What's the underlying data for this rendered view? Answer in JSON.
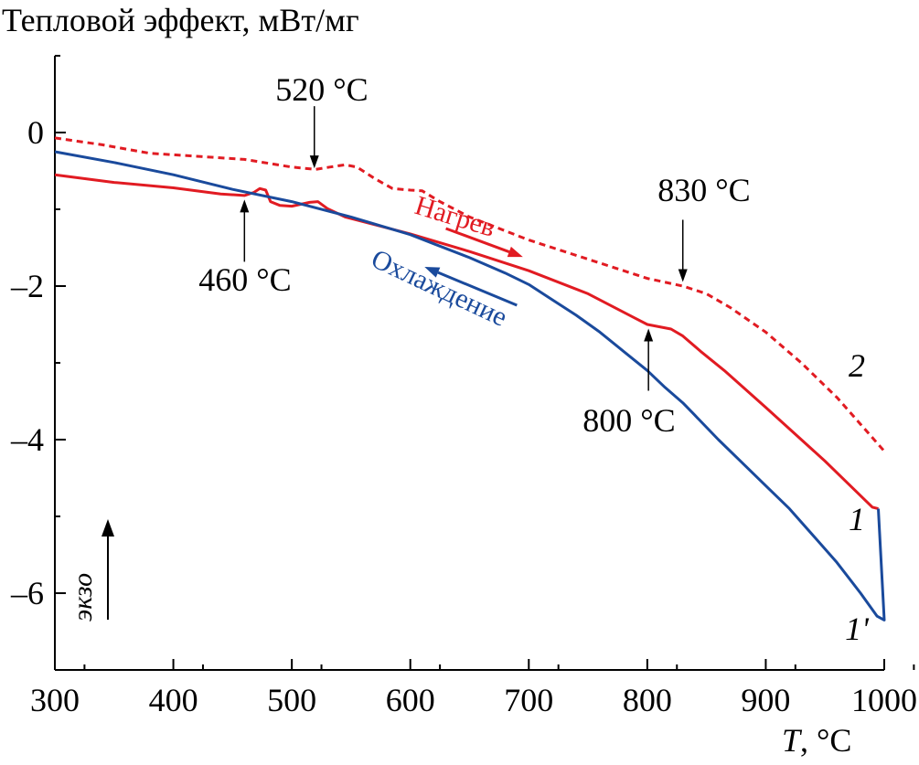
{
  "chart_data": {
    "type": "line",
    "ylabel": "Тепловой эффект, мВт/мг",
    "xlabel_var": "T",
    "xlabel_unit": ", °C",
    "xlim": [
      300,
      1000
    ],
    "ylim": [
      -7,
      1
    ],
    "xticks": [
      300,
      400,
      500,
      600,
      700,
      800,
      900,
      1000
    ],
    "yticks": [
      0,
      -2,
      -4,
      -6
    ],
    "ytick_labels": [
      "0",
      "–2",
      "–4",
      "–6"
    ],
    "grid": false,
    "exo_label": "экзо",
    "series": [
      {
        "name": "1",
        "label": "1",
        "color": "#e11b22",
        "dash": "solid",
        "points": [
          [
            300,
            -0.55
          ],
          [
            350,
            -0.65
          ],
          [
            400,
            -0.72
          ],
          [
            440,
            -0.8
          ],
          [
            460,
            -0.82
          ],
          [
            468,
            -0.78
          ],
          [
            473,
            -0.73
          ],
          [
            478,
            -0.75
          ],
          [
            482,
            -0.9
          ],
          [
            490,
            -0.95
          ],
          [
            500,
            -0.96
          ],
          [
            515,
            -0.91
          ],
          [
            522,
            -0.9
          ],
          [
            530,
            -0.99
          ],
          [
            545,
            -1.1
          ],
          [
            570,
            -1.2
          ],
          [
            600,
            -1.32
          ],
          [
            650,
            -1.55
          ],
          [
            700,
            -1.8
          ],
          [
            750,
            -2.1
          ],
          [
            790,
            -2.42
          ],
          [
            800,
            -2.5
          ],
          [
            820,
            -2.56
          ],
          [
            830,
            -2.65
          ],
          [
            845,
            -2.85
          ],
          [
            865,
            -3.1
          ],
          [
            900,
            -3.58
          ],
          [
            950,
            -4.28
          ],
          [
            990,
            -4.88
          ],
          [
            995,
            -4.9
          ]
        ]
      },
      {
        "name": "1'",
        "label": "1'",
        "color": "#1a4a9c",
        "dash": "solid",
        "points": [
          [
            995,
            -4.9
          ],
          [
            1000,
            -6.35
          ],
          [
            994,
            -6.3
          ],
          [
            980,
            -6.0
          ],
          [
            960,
            -5.6
          ],
          [
            940,
            -5.25
          ],
          [
            920,
            -4.9
          ],
          [
            900,
            -4.6
          ],
          [
            880,
            -4.3
          ],
          [
            860,
            -4.0
          ],
          [
            840,
            -3.68
          ],
          [
            830,
            -3.52
          ],
          [
            815,
            -3.32
          ],
          [
            800,
            -3.1
          ],
          [
            780,
            -2.85
          ],
          [
            760,
            -2.6
          ],
          [
            740,
            -2.38
          ],
          [
            720,
            -2.18
          ],
          [
            700,
            -1.98
          ],
          [
            680,
            -1.83
          ],
          [
            650,
            -1.63
          ],
          [
            620,
            -1.45
          ],
          [
            600,
            -1.33
          ],
          [
            550,
            -1.1
          ],
          [
            500,
            -0.9
          ],
          [
            450,
            -0.74
          ],
          [
            400,
            -0.55
          ],
          [
            350,
            -0.39
          ],
          [
            300,
            -0.25
          ]
        ]
      },
      {
        "name": "2",
        "label": "2",
        "color": "#e11b22",
        "dash": "dashed",
        "points": [
          [
            300,
            -0.07
          ],
          [
            340,
            -0.16
          ],
          [
            380,
            -0.27
          ],
          [
            420,
            -0.31
          ],
          [
            460,
            -0.35
          ],
          [
            500,
            -0.45
          ],
          [
            520,
            -0.48
          ],
          [
            532,
            -0.45
          ],
          [
            545,
            -0.42
          ],
          [
            555,
            -0.45
          ],
          [
            570,
            -0.6
          ],
          [
            585,
            -0.73
          ],
          [
            600,
            -0.75
          ],
          [
            610,
            -0.76
          ],
          [
            625,
            -0.9
          ],
          [
            650,
            -1.1
          ],
          [
            700,
            -1.4
          ],
          [
            750,
            -1.65
          ],
          [
            800,
            -1.9
          ],
          [
            830,
            -2.0
          ],
          [
            850,
            -2.1
          ],
          [
            870,
            -2.28
          ],
          [
            900,
            -2.6
          ],
          [
            930,
            -3.0
          ],
          [
            960,
            -3.45
          ],
          [
            980,
            -3.8
          ],
          [
            1000,
            -4.15
          ]
        ]
      }
    ],
    "annotations": [
      {
        "text": "460 °C",
        "x": 460,
        "y": -0.85,
        "direction": "up"
      },
      {
        "text": "520 °C",
        "x": 519,
        "y": -0.49,
        "direction": "down"
      },
      {
        "text": "800 °C",
        "x": 801,
        "y": -2.53,
        "direction": "up"
      },
      {
        "text": "830 °C",
        "x": 830,
        "y": -1.97,
        "direction": "down"
      }
    ],
    "process_labels": [
      {
        "text": "Нагрев",
        "color": "#e11b22",
        "arrow_from": [
          630,
          -1.25
        ],
        "arrow_to": [
          695,
          -1.62
        ]
      },
      {
        "text": "Охлаждение",
        "color": "#1a4a9c",
        "arrow_from": [
          690,
          -2.25
        ],
        "arrow_to": [
          612,
          -1.75
        ]
      }
    ]
  }
}
